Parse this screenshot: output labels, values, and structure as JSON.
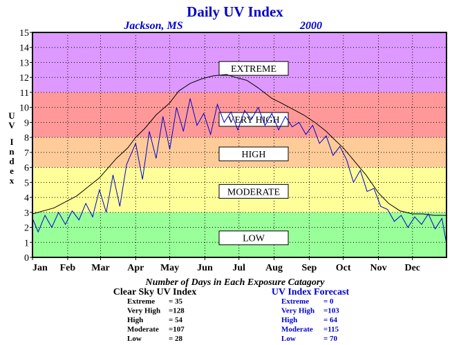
{
  "chart_data": {
    "type": "line",
    "title": "Daily UV Index",
    "subtitle_location": "Jackson, MS",
    "subtitle_year": "2000",
    "ylabel": "UV Index",
    "ylim": [
      0,
      15
    ],
    "yticks": [
      "0",
      "1",
      "2",
      "3",
      "4",
      "5",
      "6",
      "7",
      "8",
      "9",
      "10",
      "11",
      "12",
      "13",
      "14",
      "15"
    ],
    "xlim": [
      1,
      366
    ],
    "x_ticks": [
      {
        "day": 1,
        "label": "Jan"
      },
      {
        "day": 32,
        "label": "Feb"
      },
      {
        "day": 61,
        "label": "Mar"
      },
      {
        "day": 92,
        "label": "Apr"
      },
      {
        "day": 122,
        "label": "May"
      },
      {
        "day": 153,
        "label": "Jun"
      },
      {
        "day": 183,
        "label": "Jul"
      },
      {
        "day": 214,
        "label": "Aug"
      },
      {
        "day": 245,
        "label": "Sep"
      },
      {
        "day": 275,
        "label": "Oct"
      },
      {
        "day": 306,
        "label": "Nov"
      },
      {
        "day": 336,
        "label": "Dec"
      }
    ],
    "grid": true,
    "bands": [
      {
        "label": "LOW",
        "from": 0,
        "to": 3,
        "color": "#99ff99",
        "label_at": 1.3
      },
      {
        "label": "MODERATE",
        "from": 3,
        "to": 6,
        "color": "#ffff99",
        "label_at": 4.4
      },
      {
        "label": "HIGH",
        "from": 6,
        "to": 8,
        "color": "#ffcc99",
        "label_at": 6.9
      },
      {
        "label": "VERY HIGH",
        "from": 8,
        "to": 11,
        "color": "#ff9999",
        "label_at": 9.2
      },
      {
        "label": "EXTREME",
        "from": 11,
        "to": 15,
        "color": "#dd99ff",
        "label_at": 12.6
      }
    ],
    "series": [
      {
        "name": "Clear Sky UV Index",
        "color": "#000000",
        "x": [
          1,
          20,
          40,
          60,
          75,
          85,
          92,
          100,
          110,
          122,
          130,
          140,
          150,
          160,
          172,
          180,
          190,
          200,
          212,
          220,
          230,
          240,
          250,
          260,
          268,
          275,
          285,
          295,
          306,
          315,
          325,
          336,
          345,
          355,
          366
        ],
        "y": [
          2.9,
          3.3,
          4.1,
          5.3,
          6.6,
          7.3,
          8.0,
          8.6,
          9.5,
          10.3,
          11.1,
          11.6,
          11.9,
          12.1,
          12.2,
          12.0,
          11.8,
          11.3,
          10.6,
          10.3,
          9.9,
          9.5,
          9.0,
          8.4,
          7.8,
          7.3,
          6.4,
          5.5,
          4.3,
          3.6,
          3.1,
          2.9,
          2.9,
          2.8,
          2.8
        ]
      },
      {
        "name": "UV Index Forecast",
        "color": "#0000cc",
        "x": [
          1,
          6,
          12,
          18,
          24,
          30,
          36,
          42,
          48,
          54,
          60,
          66,
          72,
          78,
          84,
          92,
          98,
          104,
          110,
          116,
          122,
          128,
          134,
          140,
          146,
          152,
          158,
          164,
          170,
          176,
          182,
          188,
          194,
          200,
          206,
          212,
          218,
          224,
          230,
          236,
          242,
          248,
          254,
          260,
          266,
          272,
          278,
          284,
          290,
          296,
          302,
          308,
          314,
          320,
          326,
          332,
          338,
          344,
          350,
          356,
          362,
          366
        ],
        "y": [
          2.6,
          1.7,
          2.8,
          2.0,
          3.0,
          2.2,
          3.1,
          2.5,
          3.6,
          2.7,
          4.5,
          3.0,
          5.5,
          3.4,
          6.2,
          7.6,
          5.2,
          8.4,
          6.6,
          9.4,
          7.2,
          10.0,
          8.4,
          10.6,
          8.8,
          9.6,
          8.2,
          10.2,
          9.0,
          9.7,
          8.5,
          9.8,
          9.2,
          10.0,
          8.8,
          9.6,
          8.5,
          9.4,
          8.7,
          9.0,
          8.2,
          8.8,
          7.6,
          8.1,
          6.8,
          7.4,
          6.5,
          5.0,
          5.8,
          4.4,
          4.6,
          3.4,
          3.2,
          2.4,
          2.8,
          2.0,
          2.7,
          2.2,
          2.9,
          1.9,
          2.6,
          0.9
        ]
      }
    ],
    "x_axis_caption": "Number of Days in Each Exposure Catagory",
    "tables": [
      {
        "title": "Clear Sky UV Index",
        "color": "#000000",
        "rows": [
          {
            "label": "Extreme",
            "value": "= 35"
          },
          {
            "label": "Very High",
            "value": "=128"
          },
          {
            "label": "High",
            "value": "= 54"
          },
          {
            "label": "Moderate",
            "value": "=107"
          },
          {
            "label": "Low",
            "value": "= 28"
          }
        ]
      },
      {
        "title": "UV Index Forecast",
        "color": "#0000cc",
        "rows": [
          {
            "label": "Extreme",
            "value": "= 0"
          },
          {
            "label": "Very High",
            "value": "=103"
          },
          {
            "label": "High",
            "value": "= 64"
          },
          {
            "label": "Moderate",
            "value": "=115"
          },
          {
            "label": "Low",
            "value": "= 70"
          }
        ]
      }
    ]
  }
}
